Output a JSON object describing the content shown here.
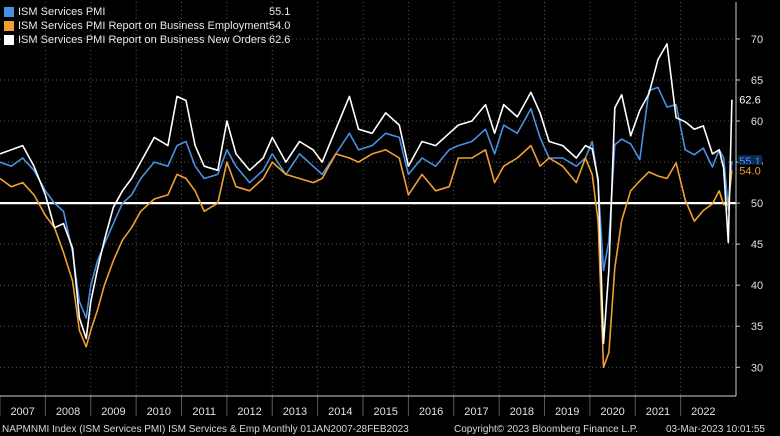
{
  "chart_data": {
    "type": "line",
    "title": "",
    "xlabel": "",
    "ylabel": "",
    "ylim": [
      26.5,
      74.5
    ],
    "xlim": [
      2007.0,
      2023.22
    ],
    "yticks": [
      30,
      35,
      40,
      45,
      50,
      55,
      60,
      65,
      70
    ],
    "year_labels": [
      "2007",
      "2008",
      "2009",
      "2010",
      "2011",
      "2012",
      "2013",
      "2014",
      "2015",
      "2016",
      "2017",
      "2018",
      "2019",
      "2020",
      "2021",
      "2022"
    ],
    "reference_line": 50,
    "colors": {
      "background": "#000000",
      "grid": "#5a5a5a",
      "axis": "#cfcfcf",
      "text": "#e0e0e0"
    },
    "series": [
      {
        "name": "ISM Services PMI",
        "last_value": "55.1",
        "color": "#4a90e2",
        "x": [
          2007.0,
          2007.25,
          2007.5,
          2007.75,
          2008.0,
          2008.2,
          2008.4,
          2008.6,
          2008.75,
          2008.9,
          2009.0,
          2009.15,
          2009.3,
          2009.5,
          2009.7,
          2009.9,
          2010.1,
          2010.4,
          2010.7,
          2010.9,
          2011.1,
          2011.3,
          2011.5,
          2011.8,
          2012.0,
          2012.2,
          2012.5,
          2012.8,
          2013.0,
          2013.3,
          2013.6,
          2013.9,
          2014.1,
          2014.4,
          2014.7,
          2014.9,
          2015.2,
          2015.5,
          2015.8,
          2016.0,
          2016.3,
          2016.6,
          2016.9,
          2017.1,
          2017.4,
          2017.7,
          2017.9,
          2018.1,
          2018.4,
          2018.7,
          2018.9,
          2019.1,
          2019.4,
          2019.7,
          2019.9,
          2020.05,
          2020.18,
          2020.3,
          2020.42,
          2020.55,
          2020.7,
          2020.9,
          2021.1,
          2021.3,
          2021.5,
          2021.7,
          2021.9,
          2022.1,
          2022.3,
          2022.5,
          2022.7,
          2022.85,
          2022.95,
          2023.05,
          2023.13
        ],
        "values": [
          55.0,
          54.5,
          55.5,
          54.0,
          51.5,
          50.0,
          49.0,
          44.0,
          38.0,
          36.0,
          40.0,
          43.0,
          45.0,
          47.5,
          50.0,
          51.0,
          53.0,
          55.0,
          54.5,
          57.0,
          57.5,
          54.5,
          53.0,
          53.5,
          56.5,
          54.5,
          52.5,
          54.0,
          56.0,
          53.5,
          56.0,
          54.5,
          53.5,
          56.0,
          58.5,
          56.5,
          57.0,
          58.5,
          58.0,
          53.5,
          55.5,
          54.5,
          56.5,
          57.0,
          57.5,
          59.0,
          56.0,
          59.5,
          58.5,
          61.5,
          58.0,
          55.5,
          55.5,
          54.5,
          55.5,
          57.5,
          52.5,
          41.8,
          45.4,
          57.1,
          57.8,
          57.2,
          55.3,
          63.7,
          64.1,
          61.7,
          62.0,
          56.5,
          55.9,
          56.7,
          54.4,
          56.5,
          55.5,
          49.2,
          55.1
        ]
      },
      {
        "name": "ISM Services PMI Report on Business Employment",
        "last_value": "54.0",
        "color": "#f0a030",
        "x": [
          2007.0,
          2007.25,
          2007.5,
          2007.75,
          2008.0,
          2008.2,
          2008.4,
          2008.6,
          2008.75,
          2008.9,
          2009.0,
          2009.15,
          2009.3,
          2009.5,
          2009.7,
          2009.9,
          2010.1,
          2010.4,
          2010.7,
          2010.9,
          2011.1,
          2011.3,
          2011.5,
          2011.8,
          2012.0,
          2012.2,
          2012.5,
          2012.8,
          2013.0,
          2013.3,
          2013.6,
          2013.9,
          2014.1,
          2014.4,
          2014.7,
          2014.9,
          2015.2,
          2015.5,
          2015.8,
          2016.0,
          2016.3,
          2016.6,
          2016.9,
          2017.1,
          2017.4,
          2017.7,
          2017.9,
          2018.1,
          2018.4,
          2018.7,
          2018.9,
          2019.1,
          2019.4,
          2019.7,
          2019.9,
          2020.05,
          2020.18,
          2020.3,
          2020.42,
          2020.55,
          2020.7,
          2020.9,
          2021.1,
          2021.3,
          2021.5,
          2021.7,
          2021.9,
          2022.1,
          2022.3,
          2022.5,
          2022.7,
          2022.85,
          2022.95,
          2023.05,
          2023.13
        ],
        "values": [
          53.0,
          52.0,
          52.5,
          51.0,
          48.5,
          47.0,
          44.0,
          40.5,
          34.5,
          32.5,
          34.5,
          37.0,
          40.0,
          43.0,
          45.5,
          47.0,
          49.0,
          50.5,
          51.0,
          53.5,
          53.0,
          51.5,
          49.0,
          50.0,
          55.0,
          52.0,
          51.5,
          53.0,
          55.0,
          53.5,
          53.0,
          52.5,
          53.0,
          56.0,
          55.5,
          55.0,
          56.0,
          56.5,
          55.5,
          51.0,
          53.5,
          51.5,
          52.0,
          55.5,
          55.5,
          56.5,
          52.5,
          54.5,
          55.5,
          57.0,
          54.5,
          55.5,
          54.5,
          52.5,
          55.5,
          53.5,
          47.8,
          30.0,
          31.8,
          42.1,
          47.9,
          51.5,
          52.7,
          53.8,
          53.3,
          53.0,
          54.9,
          50.4,
          47.8,
          49.1,
          49.9,
          51.5,
          49.8,
          49.8,
          54.0
        ]
      },
      {
        "name": "ISM Services PMI Report on Business New Orders",
        "last_value": "62.6",
        "color": "#ffffff",
        "x": [
          2007.0,
          2007.25,
          2007.5,
          2007.75,
          2008.0,
          2008.2,
          2008.4,
          2008.6,
          2008.75,
          2008.9,
          2009.0,
          2009.15,
          2009.3,
          2009.5,
          2009.7,
          2009.9,
          2010.1,
          2010.4,
          2010.7,
          2010.9,
          2011.1,
          2011.3,
          2011.5,
          2011.8,
          2012.0,
          2012.2,
          2012.5,
          2012.8,
          2013.0,
          2013.3,
          2013.6,
          2013.9,
          2014.1,
          2014.4,
          2014.7,
          2014.9,
          2015.2,
          2015.5,
          2015.8,
          2016.0,
          2016.3,
          2016.6,
          2016.9,
          2017.1,
          2017.4,
          2017.7,
          2017.9,
          2018.1,
          2018.4,
          2018.7,
          2018.9,
          2019.1,
          2019.4,
          2019.7,
          2019.9,
          2020.05,
          2020.18,
          2020.3,
          2020.42,
          2020.55,
          2020.7,
          2020.9,
          2021.1,
          2021.3,
          2021.5,
          2021.7,
          2021.9,
          2022.1,
          2022.3,
          2022.5,
          2022.7,
          2022.85,
          2022.95,
          2023.05,
          2023.13
        ],
        "values": [
          56.0,
          56.5,
          57.0,
          54.5,
          51.0,
          47.0,
          47.5,
          44.5,
          36.0,
          33.5,
          38.0,
          42.0,
          45.5,
          49.5,
          51.5,
          53.0,
          55.0,
          58.0,
          57.0,
          63.0,
          62.5,
          57.0,
          54.5,
          54.0,
          60.0,
          56.0,
          54.0,
          55.5,
          58.0,
          55.0,
          57.5,
          56.5,
          55.0,
          59.0,
          63.0,
          59.0,
          58.5,
          61.0,
          59.5,
          54.5,
          57.5,
          57.0,
          58.5,
          59.5,
          60.0,
          62.0,
          58.5,
          62.0,
          60.5,
          63.5,
          61.0,
          57.5,
          57.0,
          55.5,
          57.0,
          56.6,
          52.9,
          32.9,
          41.9,
          61.6,
          63.2,
          58.2,
          61.3,
          63.3,
          67.5,
          69.4,
          60.4,
          59.9,
          59.0,
          59.4,
          56.0,
          56.5,
          54.2,
          45.2,
          62.6
        ]
      }
    ]
  },
  "footer": {
    "left": "NAPMNMI Index (ISM Services PMI) ISM Services & Emp  Monthly 01JAN2007-28FEB2023",
    "center": "Copyright© 2023 Bloomberg Finance L.P.",
    "right": "03-Mar-2023 10:01:55"
  }
}
